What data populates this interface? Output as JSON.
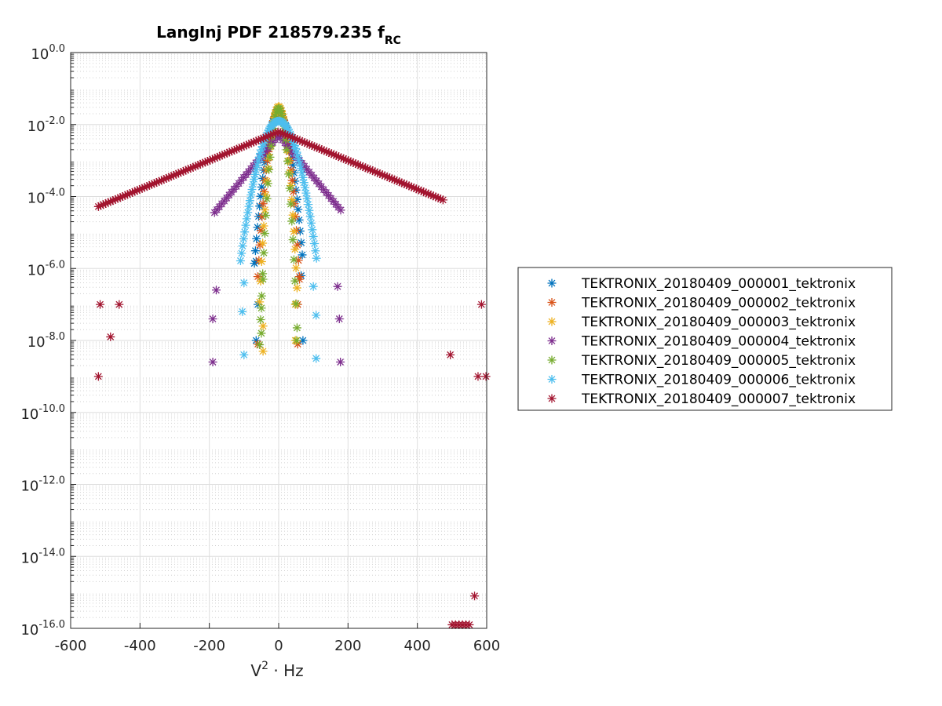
{
  "chart_data": {
    "type": "scatter",
    "title": "LangInj PDF 218579.235 f",
    "title_subscript": "RC",
    "xlabel_base": "V",
    "xlabel_exp": "2",
    "xlabel_rest": " · Hz",
    "ylabel": "",
    "xlim": [
      -600,
      600
    ],
    "ylim": [
      -16,
      0
    ],
    "y_scale": "log10",
    "x_ticks": [
      "-600",
      "-400",
      "-200",
      "0",
      "200",
      "400",
      "600"
    ],
    "y_tick_exponents": [
      "0.0",
      "-2.0",
      "-4.0",
      "-6.0",
      "-8.0",
      "-10.0",
      "-12.0",
      "-14.0",
      "-16.0"
    ],
    "y_tick_base": "10",
    "grid": true,
    "minor_grid": true,
    "marker": "asterisk",
    "legend_position": "outside-right",
    "series": [
      {
        "name": "TEKTRONIX_20180409_000001_tektronix",
        "color": "#0072BD",
        "kind": "gauss",
        "sigma": 16,
        "peak": -1.7,
        "xmin": -70,
        "xmax": 70,
        "extra": [
          [
            -60,
            -7.0
          ],
          [
            -65,
            -8.0
          ],
          [
            70,
            -8.0
          ],
          [
            -65,
            -5.8
          ],
          [
            65,
            -6.2
          ]
        ]
      },
      {
        "name": "TEKTRONIX_20180409_000002_tektronix",
        "color": "#D95319",
        "kind": "gauss",
        "sigma": 13,
        "peak": -1.6,
        "xmin": -60,
        "xmax": 60,
        "extra": [
          [
            -60,
            -8.1
          ],
          [
            55,
            -7.0
          ],
          [
            55,
            -8.1
          ],
          [
            60,
            -6.3
          ]
        ]
      },
      {
        "name": "TEKTRONIX_20180409_000003_tektronix",
        "color": "#EDB120",
        "kind": "gauss",
        "sigma": 11,
        "peak": -1.5,
        "xmin": -55,
        "xmax": 55,
        "extra": [
          [
            -45,
            -7.6
          ],
          [
            -45,
            -8.3
          ],
          [
            48,
            -8.0
          ],
          [
            48,
            -7.0
          ]
        ]
      },
      {
        "name": "TEKTRONIX_20180409_000004_tektronix",
        "color": "#7E2F8E",
        "kind": "exp",
        "peak": -2.3,
        "slope": 0.027,
        "xmin": -185,
        "xmax": 185,
        "extra": [
          [
            -180,
            -6.6
          ],
          [
            -190,
            -7.4
          ],
          [
            -190,
            -8.6
          ],
          [
            170,
            -6.5
          ],
          [
            175,
            -7.4
          ],
          [
            178,
            -8.6
          ]
        ]
      },
      {
        "name": "TEKTRONIX_20180409_000005_tektronix",
        "color": "#77AC30",
        "kind": "gauss",
        "sigma": 10,
        "peak": -1.55,
        "xmin": -55,
        "xmax": 55,
        "extra": [
          [
            -50,
            -7.1
          ],
          [
            -50,
            -7.8
          ],
          [
            52,
            -8.0
          ],
          [
            -45,
            -6.3
          ]
        ]
      },
      {
        "name": "TEKTRONIX_20180409_000006_tektronix",
        "color": "#4DBEEE",
        "kind": "gauss",
        "sigma": 26,
        "peak": -1.9,
        "xmin": -110,
        "xmax": 110,
        "extra": [
          [
            -100,
            -6.4
          ],
          [
            -105,
            -7.2
          ],
          [
            -100,
            -8.4
          ],
          [
            100,
            -6.5
          ],
          [
            108,
            -7.3
          ],
          [
            108,
            -8.5
          ]
        ]
      },
      {
        "name": "TEKTRONIX_20180409_000007_tektronix",
        "color": "#A2142F",
        "kind": "exp",
        "peak": -2.2,
        "slope": 0.0093,
        "xmin": -520,
        "xmax": 480,
        "extra": [
          [
            -520,
            -9.0
          ],
          [
            -485,
            -7.9
          ],
          [
            585,
            -7.0
          ],
          [
            575,
            -9.0
          ],
          [
            598,
            -9.0
          ],
          [
            565,
            -15.1
          ],
          [
            500,
            -15.9
          ],
          [
            510,
            -15.9
          ],
          [
            520,
            -15.9
          ],
          [
            530,
            -15.9
          ],
          [
            540,
            -15.9
          ],
          [
            550,
            -15.9
          ],
          [
            495,
            -8.4
          ],
          [
            -460,
            -7.0
          ],
          [
            -515,
            -7.0
          ]
        ]
      }
    ]
  }
}
